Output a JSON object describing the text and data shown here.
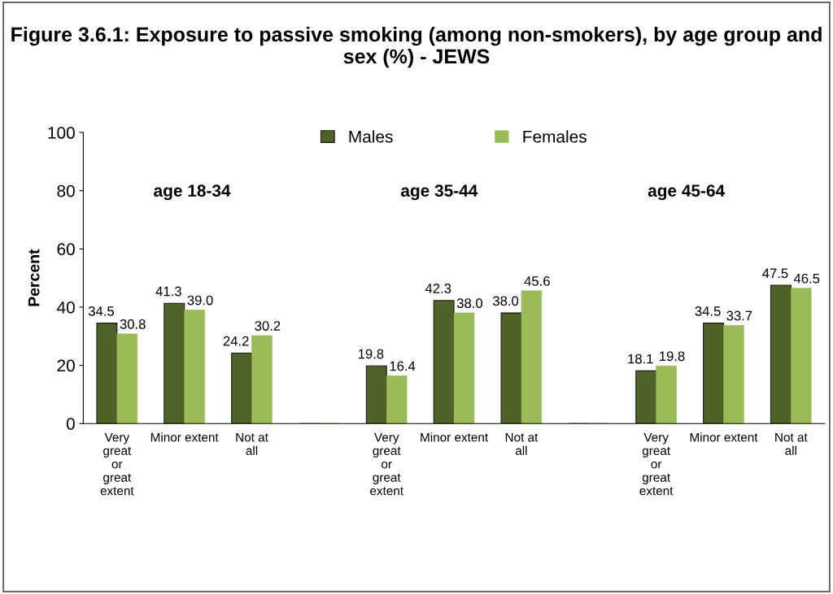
{
  "chart_data": {
    "type": "bar",
    "title": "Figure 3.6.1: Exposure to passive smoking (among non-smokers), by age group and sex (%) - JEWS",
    "ylabel": "Percent",
    "categories": [
      "Very\ngreat\nor\ngreat\nextent",
      "Minor extent",
      "Not at\nall",
      null,
      "Very\ngreat\nor\ngreat\nextent",
      "Minor extent",
      "Not at\nall",
      null,
      "Very\ngreat\nor\ngreat\nextent",
      "Minor extent",
      "Not at\nall"
    ],
    "series": [
      {
        "name": "Males",
        "color": "#4f6228",
        "values": [
          34.5,
          41.3,
          24.2,
          null,
          19.8,
          42.3,
          38.0,
          null,
          18.1,
          34.5,
          47.5
        ],
        "value_labels": [
          "34.5",
          "41.3",
          "24.2",
          null,
          "19.8",
          "42.3",
          "38.0",
          null,
          "18.1",
          "34.5",
          "47.5"
        ]
      },
      {
        "name": "Females",
        "color": "#9bbb59",
        "values": [
          30.8,
          39.0,
          30.2,
          null,
          16.4,
          38.0,
          45.6,
          null,
          19.8,
          33.7,
          46.5
        ],
        "value_labels": [
          "30.8",
          "39.0",
          "30.2",
          null,
          "16.4",
          "38.0",
          "45.6",
          null,
          "19.8",
          "33.7",
          "46.5"
        ]
      }
    ],
    "annotations": [
      "age 18-34",
      "age 35-44",
      "age 45-64"
    ],
    "ylim": [
      0,
      100
    ],
    "yticks": [
      0,
      20,
      40,
      60,
      80,
      100
    ],
    "grid": false,
    "legend": "top",
    "data_labels": true
  }
}
